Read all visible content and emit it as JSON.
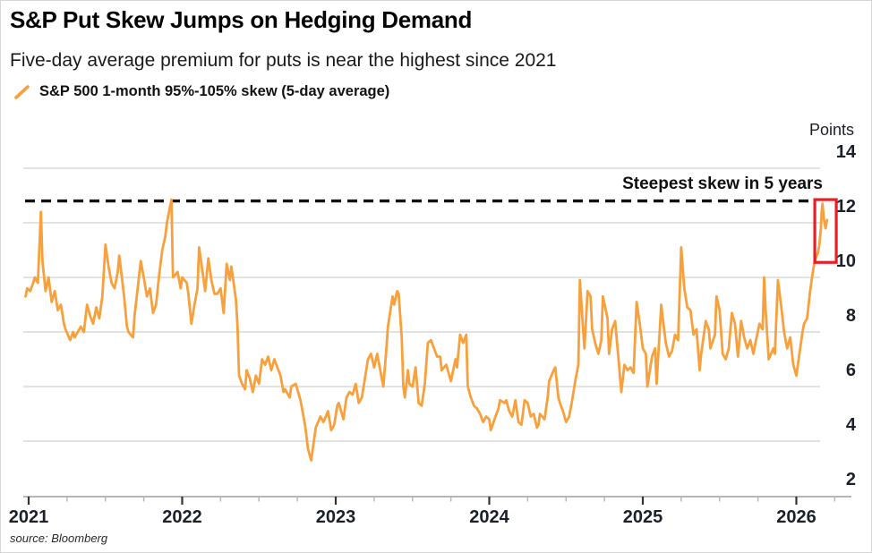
{
  "header": {
    "title": "S&P Put Skew Jumps on Hedging Demand",
    "subtitle": "Five-day average premium for puts is near the highest since 2021",
    "legend": {
      "icon": "orange-slash-icon",
      "label": "S&P 500 1-month 95%-105% skew (5-day average)"
    }
  },
  "footer": {
    "source": "source: Bloomberg"
  },
  "colors": {
    "series_orange": "#F7A03C",
    "highlight_red": "#E81E25",
    "dashed_black": "#111111",
    "gridline_gray": "#d8d8d8",
    "axis_gray": "#9e9e9e",
    "tick_major": "#333333",
    "tick_minor": "#b7b7b7"
  },
  "chart_data": {
    "type": "line",
    "title": "S&P Put Skew Jumps on Hedging Demand",
    "subtitle": "Five-day average premium for puts is near the highest since 2021",
    "unit_label": "Points",
    "y_axis": {
      "label": "Points",
      "ticks": [
        2,
        4,
        6,
        8,
        10,
        12,
        14
      ],
      "range": [
        2,
        14.6
      ],
      "gridlines": true
    },
    "x_axis": {
      "ticks": [
        2021,
        2022,
        2023,
        2024,
        2025,
        2026
      ],
      "minor_tick_interval": 0.25,
      "range": [
        2020.97,
        2026.36
      ]
    },
    "annotation": {
      "label": "Steepest skew in 5 years",
      "line_value": 12.8,
      "style": "dashed-black-horizontal"
    },
    "highlight_box": {
      "x_range": [
        2026.12,
        2026.26
      ],
      "y_range": [
        10.55,
        12.85
      ]
    },
    "legend_position": "top-left",
    "series": [
      {
        "name": "S&P 500 1-month 95%-105% skew (5-day average)",
        "color": "#F7A03C",
        "points": [
          [
            2020.98,
            9.3
          ],
          [
            2020.99,
            9.6
          ],
          [
            2021.01,
            9.5
          ],
          [
            2021.03,
            9.8
          ],
          [
            2021.04,
            10.0
          ],
          [
            2021.06,
            9.8
          ],
          [
            2021.08,
            12.4
          ],
          [
            2021.09,
            10.6
          ],
          [
            2021.11,
            9.5
          ],
          [
            2021.13,
            10.0
          ],
          [
            2021.15,
            9.1
          ],
          [
            2021.17,
            9.5
          ],
          [
            2021.19,
            8.8
          ],
          [
            2021.21,
            9.0
          ],
          [
            2021.23,
            8.3
          ],
          [
            2021.24,
            8.1
          ],
          [
            2021.27,
            7.7
          ],
          [
            2021.29,
            8.0
          ],
          [
            2021.3,
            7.8
          ],
          [
            2021.33,
            8.1
          ],
          [
            2021.34,
            8.2
          ],
          [
            2021.36,
            8.0
          ],
          [
            2021.38,
            9.0
          ],
          [
            2021.4,
            8.6
          ],
          [
            2021.42,
            8.3
          ],
          [
            2021.44,
            8.9
          ],
          [
            2021.46,
            8.5
          ],
          [
            2021.48,
            9.3
          ],
          [
            2021.5,
            11.2
          ],
          [
            2021.52,
            10.4
          ],
          [
            2021.54,
            9.8
          ],
          [
            2021.56,
            9.6
          ],
          [
            2021.58,
            10.2
          ],
          [
            2021.59,
            10.8
          ],
          [
            2021.62,
            9.4
          ],
          [
            2021.64,
            8.2
          ],
          [
            2021.65,
            8.0
          ],
          [
            2021.68,
            7.8
          ],
          [
            2021.69,
            8.6
          ],
          [
            2021.71,
            9.6
          ],
          [
            2021.73,
            10.6
          ],
          [
            2021.75,
            10.0
          ],
          [
            2021.77,
            9.3
          ],
          [
            2021.79,
            9.6
          ],
          [
            2021.81,
            8.7
          ],
          [
            2021.83,
            9.0
          ],
          [
            2021.85,
            10.1
          ],
          [
            2021.87,
            11.0
          ],
          [
            2021.89,
            11.5
          ],
          [
            2021.9,
            12.0
          ],
          [
            2021.93,
            12.85
          ],
          [
            2021.94,
            10.0
          ],
          [
            2021.97,
            10.2
          ],
          [
            2021.99,
            9.6
          ],
          [
            2022.0,
            10.0
          ],
          [
            2022.03,
            9.8
          ],
          [
            2022.04,
            9.4
          ],
          [
            2022.06,
            8.3
          ],
          [
            2022.08,
            9.0
          ],
          [
            2022.1,
            9.6
          ],
          [
            2022.11,
            11.1
          ],
          [
            2022.13,
            10.3
          ],
          [
            2022.15,
            9.5
          ],
          [
            2022.17,
            10.7
          ],
          [
            2022.19,
            9.9
          ],
          [
            2022.21,
            9.4
          ],
          [
            2022.23,
            9.4
          ],
          [
            2022.25,
            9.6
          ],
          [
            2022.27,
            8.7
          ],
          [
            2022.29,
            10.5
          ],
          [
            2022.31,
            9.9
          ],
          [
            2022.32,
            10.4
          ],
          [
            2022.35,
            9.2
          ],
          [
            2022.36,
            8.3
          ],
          [
            2022.37,
            6.4
          ],
          [
            2022.39,
            6.1
          ],
          [
            2022.41,
            5.9
          ],
          [
            2022.42,
            6.6
          ],
          [
            2022.44,
            6.3
          ],
          [
            2022.46,
            5.8
          ],
          [
            2022.48,
            6.4
          ],
          [
            2022.5,
            6.1
          ],
          [
            2022.52,
            7.0
          ],
          [
            2022.54,
            6.8
          ],
          [
            2022.56,
            7.1
          ],
          [
            2022.58,
            6.6
          ],
          [
            2022.6,
            7.0
          ],
          [
            2022.62,
            6.7
          ],
          [
            2022.64,
            6.4
          ],
          [
            2022.66,
            5.8
          ],
          [
            2022.67,
            5.9
          ],
          [
            2022.7,
            5.6
          ],
          [
            2022.71,
            6.0
          ],
          [
            2022.74,
            6.1
          ],
          [
            2022.77,
            5.5
          ],
          [
            2022.8,
            4.6
          ],
          [
            2022.82,
            3.7
          ],
          [
            2022.84,
            3.3
          ],
          [
            2022.87,
            4.5
          ],
          [
            2022.9,
            4.9
          ],
          [
            2022.92,
            4.7
          ],
          [
            2022.95,
            5.1
          ],
          [
            2022.97,
            4.4
          ],
          [
            2022.99,
            4.6
          ],
          [
            2023.01,
            5.3
          ],
          [
            2023.02,
            5.4
          ],
          [
            2023.05,
            4.8
          ],
          [
            2023.07,
            5.6
          ],
          [
            2023.09,
            5.8
          ],
          [
            2023.11,
            5.7
          ],
          [
            2023.13,
            6.1
          ],
          [
            2023.15,
            5.4
          ],
          [
            2023.17,
            5.6
          ],
          [
            2023.19,
            6.3
          ],
          [
            2023.21,
            7.0
          ],
          [
            2023.23,
            7.2
          ],
          [
            2023.25,
            6.7
          ],
          [
            2023.27,
            7.2
          ],
          [
            2023.29,
            6.6
          ],
          [
            2023.31,
            6.0
          ],
          [
            2023.33,
            7.4
          ],
          [
            2023.34,
            8.2
          ],
          [
            2023.37,
            9.3
          ],
          [
            2023.38,
            9.0
          ],
          [
            2023.4,
            9.5
          ],
          [
            2023.41,
            9.4
          ],
          [
            2023.43,
            7.8
          ],
          [
            2023.44,
            6.0
          ],
          [
            2023.45,
            5.6
          ],
          [
            2023.47,
            6.6
          ],
          [
            2023.48,
            6.1
          ],
          [
            2023.5,
            6.0
          ],
          [
            2023.52,
            6.7
          ],
          [
            2023.54,
            5.4
          ],
          [
            2023.56,
            5.3
          ],
          [
            2023.58,
            6.1
          ],
          [
            2023.6,
            7.6
          ],
          [
            2023.62,
            7.7
          ],
          [
            2023.64,
            7.4
          ],
          [
            2023.66,
            7.1
          ],
          [
            2023.68,
            7.1
          ],
          [
            2023.69,
            6.6
          ],
          [
            2023.72,
            6.8
          ],
          [
            2023.73,
            6.6
          ],
          [
            2023.75,
            6.2
          ],
          [
            2023.78,
            7.0
          ],
          [
            2023.79,
            6.7
          ],
          [
            2023.81,
            7.9
          ],
          [
            2023.83,
            7.6
          ],
          [
            2023.85,
            7.9
          ],
          [
            2023.86,
            6.0
          ],
          [
            2023.88,
            5.6
          ],
          [
            2023.9,
            5.3
          ],
          [
            2023.92,
            5.2
          ],
          [
            2023.94,
            5.0
          ],
          [
            2023.96,
            4.7
          ],
          [
            2023.98,
            4.9
          ],
          [
            2024.0,
            4.8
          ],
          [
            2024.01,
            4.4
          ],
          [
            2024.04,
            4.9
          ],
          [
            2024.06,
            5.2
          ],
          [
            2024.07,
            5.5
          ],
          [
            2024.1,
            5.4
          ],
          [
            2024.11,
            5.5
          ],
          [
            2024.13,
            5.1
          ],
          [
            2024.15,
            4.9
          ],
          [
            2024.17,
            5.5
          ],
          [
            2024.19,
            4.7
          ],
          [
            2024.21,
            4.6
          ],
          [
            2024.23,
            5.5
          ],
          [
            2024.25,
            5.4
          ],
          [
            2024.27,
            4.9
          ],
          [
            2024.29,
            5.0
          ],
          [
            2024.31,
            4.5
          ],
          [
            2024.32,
            4.6
          ],
          [
            2024.33,
            5.0
          ],
          [
            2024.36,
            4.8
          ],
          [
            2024.38,
            5.6
          ],
          [
            2024.39,
            6.2
          ],
          [
            2024.42,
            6.6
          ],
          [
            2024.43,
            6.7
          ],
          [
            2024.45,
            5.6
          ],
          [
            2024.46,
            5.4
          ],
          [
            2024.48,
            5.1
          ],
          [
            2024.5,
            4.7
          ],
          [
            2024.52,
            4.9
          ],
          [
            2024.54,
            5.5
          ],
          [
            2024.56,
            6.2
          ],
          [
            2024.58,
            6.8
          ],
          [
            2024.59,
            9.9
          ],
          [
            2024.61,
            8.2
          ],
          [
            2024.62,
            7.4
          ],
          [
            2024.64,
            9.5
          ],
          [
            2024.66,
            9.3
          ],
          [
            2024.67,
            8.1
          ],
          [
            2024.69,
            7.6
          ],
          [
            2024.71,
            7.2
          ],
          [
            2024.73,
            7.7
          ],
          [
            2024.74,
            9.3
          ],
          [
            2024.77,
            8.5
          ],
          [
            2024.78,
            7.2
          ],
          [
            2024.8,
            8.1
          ],
          [
            2024.82,
            8.4
          ],
          [
            2024.84,
            7.1
          ],
          [
            2024.86,
            5.8
          ],
          [
            2024.88,
            6.8
          ],
          [
            2024.9,
            6.6
          ],
          [
            2024.92,
            6.7
          ],
          [
            2024.94,
            6.5
          ],
          [
            2024.96,
            9.1
          ],
          [
            2024.98,
            8.3
          ],
          [
            2025.0,
            7.4
          ],
          [
            2025.02,
            7.2
          ],
          [
            2025.03,
            6.0
          ],
          [
            2025.06,
            7.1
          ],
          [
            2025.08,
            7.4
          ],
          [
            2025.09,
            6.1
          ],
          [
            2025.12,
            9.0
          ],
          [
            2025.13,
            8.5
          ],
          [
            2025.15,
            7.6
          ],
          [
            2025.17,
            7.1
          ],
          [
            2025.19,
            7.3
          ],
          [
            2025.21,
            7.9
          ],
          [
            2025.23,
            7.7
          ],
          [
            2025.25,
            11.1
          ],
          [
            2025.27,
            9.6
          ],
          [
            2025.29,
            8.9
          ],
          [
            2025.31,
            8.8
          ],
          [
            2025.33,
            7.9
          ],
          [
            2025.35,
            8.1
          ],
          [
            2025.37,
            6.6
          ],
          [
            2025.38,
            7.2
          ],
          [
            2025.41,
            8.4
          ],
          [
            2025.43,
            8.1
          ],
          [
            2025.44,
            7.4
          ],
          [
            2025.47,
            7.9
          ],
          [
            2025.48,
            9.3
          ],
          [
            2025.5,
            8.8
          ],
          [
            2025.52,
            7.2
          ],
          [
            2025.54,
            7.0
          ],
          [
            2025.56,
            7.4
          ],
          [
            2025.58,
            8.7
          ],
          [
            2025.6,
            8.3
          ],
          [
            2025.62,
            7.1
          ],
          [
            2025.64,
            8.4
          ],
          [
            2025.66,
            7.8
          ],
          [
            2025.68,
            7.4
          ],
          [
            2025.7,
            7.7
          ],
          [
            2025.72,
            7.2
          ],
          [
            2025.73,
            7.5
          ],
          [
            2025.76,
            8.3
          ],
          [
            2025.78,
            8.1
          ],
          [
            2025.79,
            10.0
          ],
          [
            2025.8,
            8.8
          ],
          [
            2025.82,
            7.0
          ],
          [
            2025.85,
            7.4
          ],
          [
            2025.86,
            7.2
          ],
          [
            2025.88,
            9.9
          ],
          [
            2025.9,
            9.0
          ],
          [
            2025.92,
            8.0
          ],
          [
            2025.94,
            7.4
          ],
          [
            2025.96,
            7.8
          ],
          [
            2025.98,
            6.8
          ],
          [
            2026.0,
            6.4
          ],
          [
            2026.02,
            7.2
          ],
          [
            2026.04,
            8.0
          ],
          [
            2026.05,
            8.3
          ],
          [
            2026.07,
            8.5
          ],
          [
            2026.08,
            9.0
          ],
          [
            2026.09,
            9.5
          ],
          [
            2026.1,
            9.9
          ],
          [
            2026.11,
            10.3
          ],
          [
            2026.12,
            10.6
          ],
          [
            2026.14,
            10.9
          ],
          [
            2026.15,
            11.2
          ],
          [
            2026.16,
            11.8
          ],
          [
            2026.165,
            12.4
          ],
          [
            2026.17,
            12.7
          ],
          [
            2026.18,
            12.1
          ],
          [
            2026.19,
            11.8
          ],
          [
            2026.2,
            12.1
          ]
        ]
      }
    ]
  }
}
